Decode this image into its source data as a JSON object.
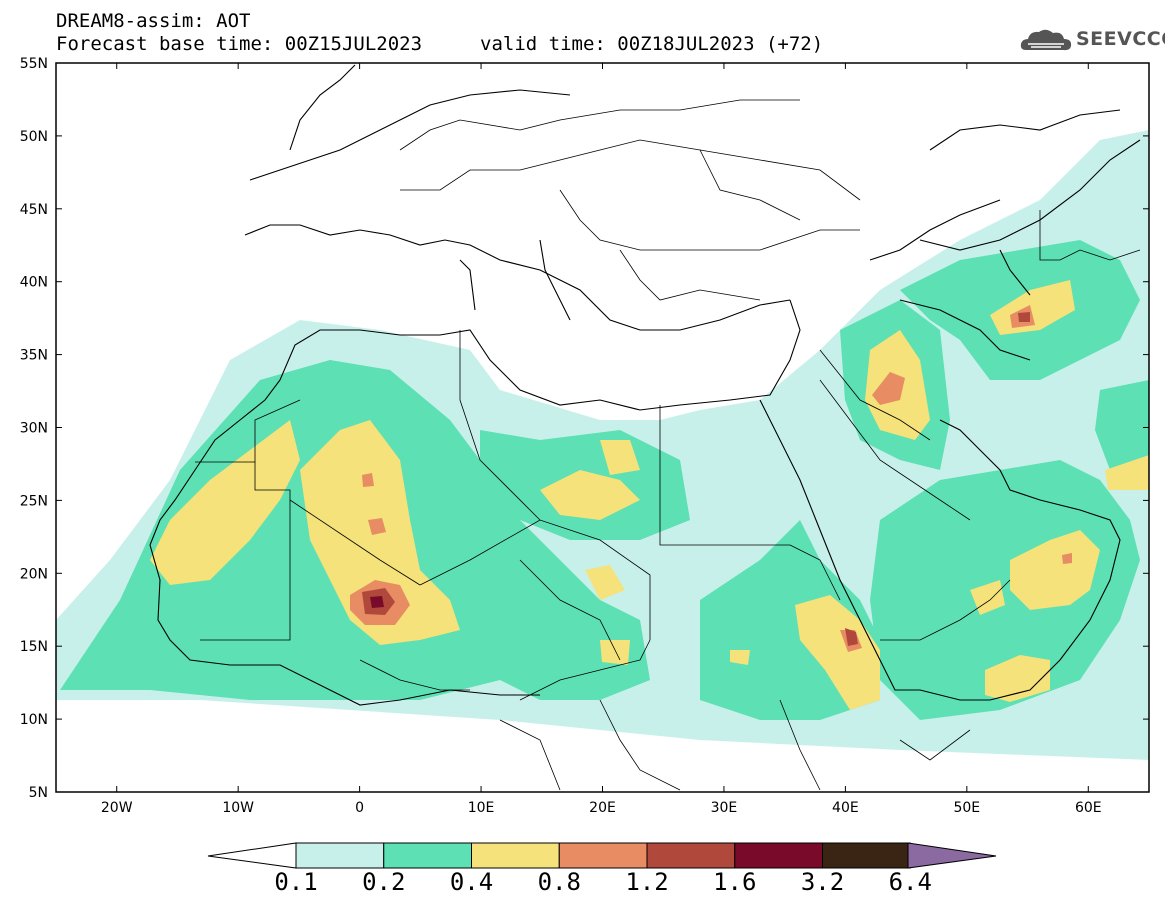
{
  "header": {
    "title_line1": "DREAM8-assim: AOT",
    "title_line2": "Forecast base time: 00Z15JUL2023",
    "valid_time": "valid time: 00Z18JUL2023 (+72)",
    "logo_text": "SEEVCCC"
  },
  "axes": {
    "lat_labels": [
      "55N",
      "50N",
      "45N",
      "40N",
      "35N",
      "30N",
      "25N",
      "20N",
      "15N",
      "10N",
      "5N"
    ],
    "lon_labels": [
      "20W",
      "10W",
      "0",
      "10E",
      "20E",
      "30E",
      "40E",
      "50E",
      "60E"
    ]
  },
  "colorbar": {
    "labels": [
      "0.1",
      "0.2",
      "0.4",
      "0.8",
      "1.2",
      "1.6",
      "3.2",
      "6.4"
    ],
    "colors": [
      "#ffffff",
      "#c8f0ea",
      "#5ce0b4",
      "#f5e27a",
      "#e88c64",
      "#b0483c",
      "#7a0a2a",
      "#3a2414",
      "#8a6aa0"
    ]
  },
  "map_colors": {
    "very_low": "#c8f0ea",
    "low": "#5ce0b4",
    "moderate": "#f5e27a",
    "high": "#e88c64",
    "very_high": "#b0483c",
    "extreme": "#7a0a2a"
  }
}
